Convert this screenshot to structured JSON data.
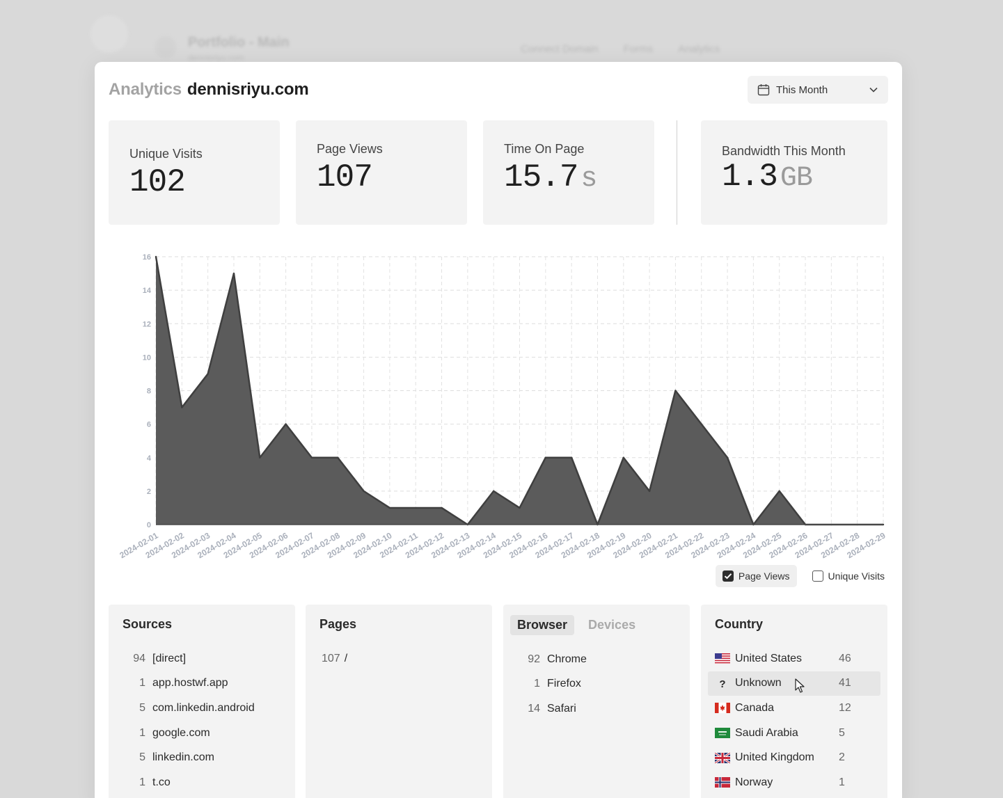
{
  "background": {
    "project_title": "Portfolio - Main",
    "project_subtitle": "dennisriyu.com",
    "nav": [
      "Connect Domain",
      "Forms",
      "Analytics"
    ]
  },
  "header": {
    "label": "Analytics",
    "domain": "dennisriyu.com",
    "period": "This Month"
  },
  "stats": {
    "unique_visits": {
      "label": "Unique Visits",
      "value": "102"
    },
    "page_views": {
      "label": "Page Views",
      "value": "107"
    },
    "time_on_page": {
      "label": "Time On Page",
      "value": "15.7",
      "unit": "s"
    },
    "bandwidth": {
      "label": "Bandwidth This Month",
      "value": "1.3",
      "unit": "GB"
    }
  },
  "chart_data": {
    "type": "area",
    "x": [
      "2024-02-01",
      "2024-02-02",
      "2024-02-03",
      "2024-02-04",
      "2024-02-05",
      "2024-02-06",
      "2024-02-07",
      "2024-02-08",
      "2024-02-09",
      "2024-02-10",
      "2024-02-11",
      "2024-02-12",
      "2024-02-13",
      "2024-02-14",
      "2024-02-15",
      "2024-02-16",
      "2024-02-17",
      "2024-02-18",
      "2024-02-19",
      "2024-02-20",
      "2024-02-21",
      "2024-02-22",
      "2024-02-23",
      "2024-02-24",
      "2024-02-25",
      "2024-02-26",
      "2024-02-27",
      "2024-02-28",
      "2024-02-29"
    ],
    "series": [
      {
        "name": "Page Views",
        "values": [
          16,
          7,
          9,
          15,
          4,
          6,
          4,
          4,
          2,
          1,
          1,
          1,
          0,
          2,
          1,
          4,
          4,
          0,
          4,
          2,
          8,
          6,
          4,
          0,
          2,
          0,
          0,
          0,
          0
        ]
      }
    ],
    "yticks": [
      0,
      2,
      4,
      6,
      8,
      10,
      12,
      14,
      16
    ],
    "ylim": [
      0,
      16
    ],
    "grid": true,
    "fill_color": "#5b5b5b",
    "line_color": "#3f3f3f",
    "legend": [
      {
        "label": "Page Views",
        "checked": true
      },
      {
        "label": "Unique Visits",
        "checked": false
      }
    ]
  },
  "sources": {
    "title": "Sources",
    "items": [
      {
        "count": "94",
        "name": "[direct]"
      },
      {
        "count": "1",
        "name": "app.hostwf.app"
      },
      {
        "count": "5",
        "name": "com.linkedin.android"
      },
      {
        "count": "1",
        "name": "google.com"
      },
      {
        "count": "5",
        "name": "linkedin.com"
      },
      {
        "count": "1",
        "name": "t.co"
      }
    ]
  },
  "pages": {
    "title": "Pages",
    "items": [
      {
        "count": "107",
        "name": "/"
      }
    ]
  },
  "browser": {
    "tabs": [
      "Browser",
      "Devices"
    ],
    "items": [
      {
        "count": "92",
        "name": "Chrome"
      },
      {
        "count": "1",
        "name": "Firefox"
      },
      {
        "count": "14",
        "name": "Safari"
      }
    ]
  },
  "country": {
    "title": "Country",
    "unknown_symbol": "?",
    "items": [
      {
        "flag": "us-flag",
        "name": "United States",
        "count": "46"
      },
      {
        "flag": "unknown",
        "name": "Unknown",
        "count": "41"
      },
      {
        "flag": "ca-flag",
        "name": "Canada",
        "count": "12"
      },
      {
        "flag": "sa-flag",
        "name": "Saudi Arabia",
        "count": "5"
      },
      {
        "flag": "gb-flag",
        "name": "United Kingdom",
        "count": "2"
      },
      {
        "flag": "no-flag",
        "name": "Norway",
        "count": "1"
      }
    ]
  }
}
